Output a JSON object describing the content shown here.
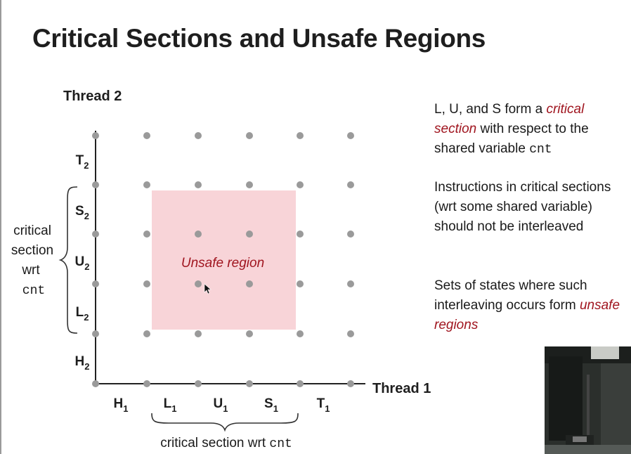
{
  "slide": {
    "title": "Critical Sections and Unsafe Regions"
  },
  "diagram": {
    "y_axis_label": "Thread 2",
    "x_axis_label": "Thread 1",
    "x_ticks": [
      {
        "main": "H",
        "sub": "1"
      },
      {
        "main": "L",
        "sub": "1"
      },
      {
        "main": "U",
        "sub": "1"
      },
      {
        "main": "S",
        "sub": "1"
      },
      {
        "main": "T",
        "sub": "1"
      }
    ],
    "y_ticks": [
      {
        "main": "H",
        "sub": "2"
      },
      {
        "main": "L",
        "sub": "2"
      },
      {
        "main": "U",
        "sub": "2"
      },
      {
        "main": "S",
        "sub": "2"
      },
      {
        "main": "T",
        "sub": "2"
      }
    ],
    "unsafe_region_label": "Unsafe region",
    "left_brace_label": {
      "line1": "critical",
      "line2": "section",
      "line3": "wrt",
      "line4": "cnt"
    },
    "bottom_brace_label": {
      "text": "critical section wrt ",
      "code": "cnt"
    },
    "colors": {
      "unsafe_fill": "#f8d4d8",
      "accent": "#a0151f",
      "dot": "#9a9a9a",
      "axis": "#222222"
    }
  },
  "notes": [
    {
      "pre": "L, U, and S form a ",
      "em1": "critical",
      "mid": " ",
      "em2": "section",
      "post": " with respect to the shared variable ",
      "code": "cnt"
    },
    {
      "text": "Instructions in critical sections (wrt some shared variable) should not be interleaved"
    },
    {
      "pre": "Sets of states where such interleaving occurs form ",
      "em": "unsafe regions"
    }
  ]
}
